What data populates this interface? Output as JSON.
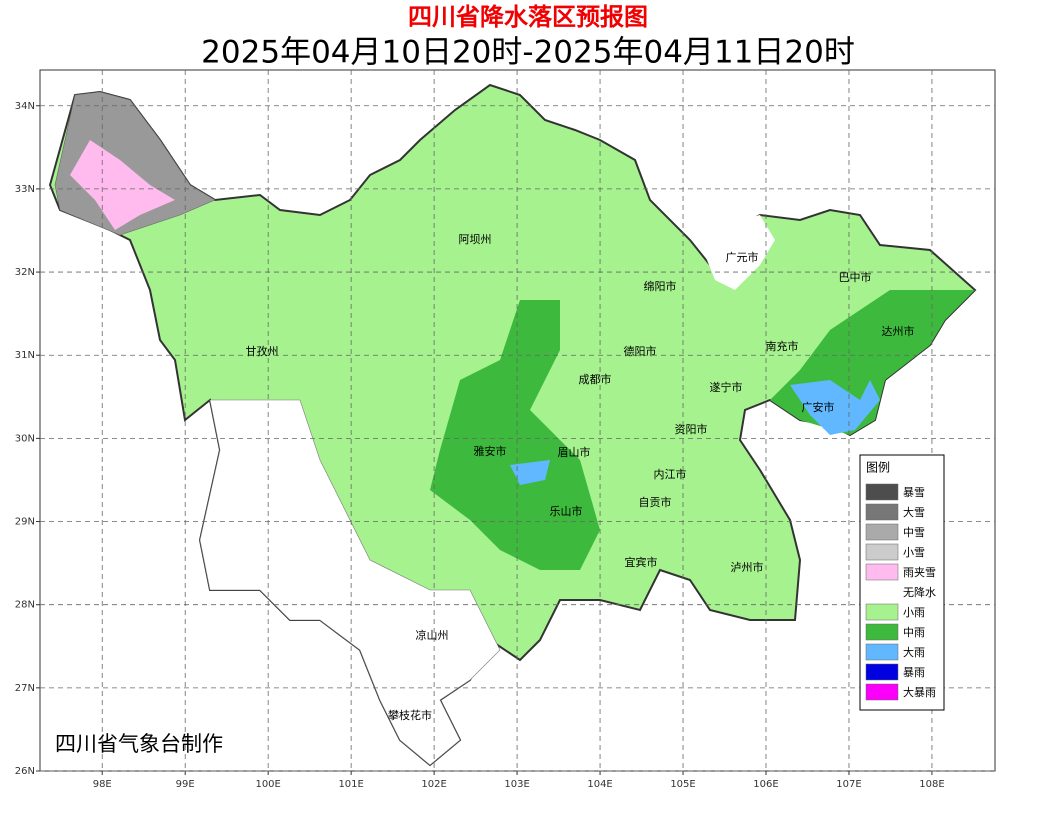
{
  "header": {
    "title": "四川省降水落区预报图",
    "subtitle": "2025年04月10日20时-2025年04月11日20时"
  },
  "map": {
    "xlim": [
      97.25,
      108.76
    ],
    "ylim": [
      26,
      34.43
    ],
    "grid": true,
    "xticks": [
      {
        "value": 98,
        "label": "98E"
      },
      {
        "value": 99,
        "label": "99E"
      },
      {
        "value": 100,
        "label": "100E"
      },
      {
        "value": 101,
        "label": "101E"
      },
      {
        "value": 102,
        "label": "102E"
      },
      {
        "value": 103,
        "label": "103E"
      },
      {
        "value": 104,
        "label": "104E"
      },
      {
        "value": 105,
        "label": "105E"
      },
      {
        "value": 106,
        "label": "106E"
      },
      {
        "value": 107,
        "label": "107E"
      },
      {
        "value": 108,
        "label": "108E"
      }
    ],
    "yticks": [
      {
        "value": 26,
        "label": "26N"
      },
      {
        "value": 27,
        "label": "27N"
      },
      {
        "value": 28,
        "label": "28N"
      },
      {
        "value": 29,
        "label": "29N"
      },
      {
        "value": 30,
        "label": "30N"
      },
      {
        "value": 31,
        "label": "31N"
      },
      {
        "value": 32,
        "label": "32N"
      },
      {
        "value": 33,
        "label": "33N"
      },
      {
        "value": 34,
        "label": "34N"
      }
    ],
    "cities": [
      "阿坝州",
      "绵阳市",
      "广元市",
      "巴中市",
      "达州市",
      "德阳市",
      "南充市",
      "甘孜州",
      "成都市",
      "遂宁市",
      "广安市",
      "资阳市",
      "雅安市",
      "眉山市",
      "内江市",
      "自贡市",
      "乐山市",
      "宜宾市",
      "泸州市",
      "凉山州",
      "攀枝花市"
    ],
    "credit": "四川省气象台制作"
  },
  "legend": {
    "title": "图例",
    "items": [
      {
        "label": "暴雪",
        "color": "#4d4d4d"
      },
      {
        "label": "大雪",
        "color": "#777777"
      },
      {
        "label": "中雪",
        "color": "#aaaaaa"
      },
      {
        "label": "小雪",
        "color": "#cccccc"
      },
      {
        "label": "雨夹雪",
        "color": "#ffbbee"
      },
      {
        "label": "无降水",
        "color": "#ffffff"
      },
      {
        "label": "小雨",
        "color": "#a6f28f"
      },
      {
        "label": "中雨",
        "color": "#3dba3d"
      },
      {
        "label": "大雨",
        "color": "#61b8ff"
      },
      {
        "label": "暴雨",
        "color": "#0000e1"
      },
      {
        "label": "大暴雨",
        "color": "#fa00fa"
      }
    ]
  }
}
